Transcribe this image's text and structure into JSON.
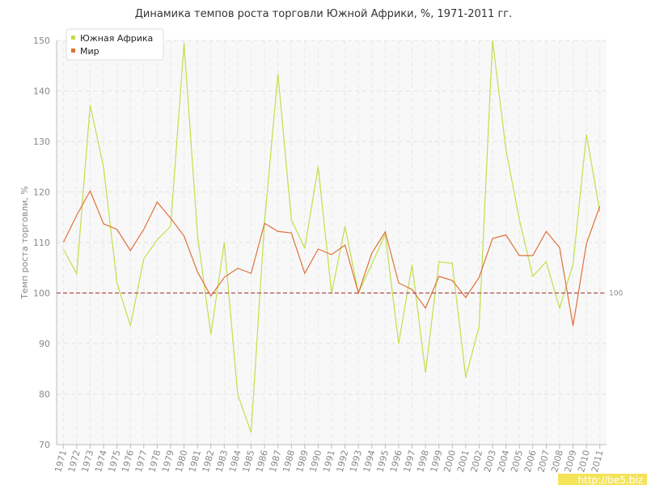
{
  "chart_data": {
    "type": "line",
    "title": "Динамика темпов роста торговли Южной Африки, %, 1971-2011 гг.",
    "y_label": "Темп роста торговли, %",
    "categories": [
      "1971",
      "1972",
      "1973",
      "1974",
      "1975",
      "1976",
      "1977",
      "1978",
      "1979",
      "1980",
      "1981",
      "1982",
      "1983",
      "1984",
      "1985",
      "1986",
      "1987",
      "1988",
      "1989",
      "1990",
      "1991",
      "1992",
      "1993",
      "1994",
      "1995",
      "1996",
      "1997",
      "1998",
      "1999",
      "2000",
      "2001",
      "2002",
      "2003",
      "2004",
      "2005",
      "2006",
      "2007",
      "2008",
      "2009",
      "2010",
      "2011"
    ],
    "series": [
      {
        "name": "Южная Африка",
        "color": "#bfe04a",
        "values": [
          108.7,
          103.8,
          137.2,
          124.9,
          102,
          93.5,
          106.8,
          110.5,
          113.2,
          149.5,
          111.6,
          91.8,
          110,
          79.9,
          72.4,
          114,
          143.4,
          114.5,
          108.9,
          125,
          99.9,
          113.2,
          100,
          105.7,
          111.6,
          90,
          105.6,
          84.2,
          106.2,
          105.9,
          83.3,
          93.4,
          150,
          128.4,
          114.5,
          103.3,
          106.2,
          97,
          105.7,
          131.4,
          116
        ]
      },
      {
        "name": "Мир",
        "color": "#e0703a",
        "values": [
          110,
          115.4,
          120.2,
          113.7,
          112.6,
          108.4,
          112.6,
          118,
          114.8,
          111.3,
          104.2,
          99.4,
          103.1,
          104.9,
          103.9,
          113.8,
          112.2,
          111.9,
          103.9,
          108.7,
          107.6,
          109.5,
          100,
          107.9,
          112.1,
          102,
          100.7,
          97,
          103.3,
          102.5,
          99.1,
          103.1,
          110.8,
          111.5,
          107.4,
          107.4,
          112.2,
          109,
          93.5,
          109.8,
          117.2
        ]
      }
    ],
    "ylim": [
      70,
      150
    ],
    "yticks": [
      70,
      80,
      90,
      100,
      110,
      120,
      130,
      140,
      150
    ],
    "grid": true,
    "legend": "top-left",
    "reference_line": 100,
    "reference_color": "#b04a4a",
    "watermark": "http://be5.biz"
  }
}
